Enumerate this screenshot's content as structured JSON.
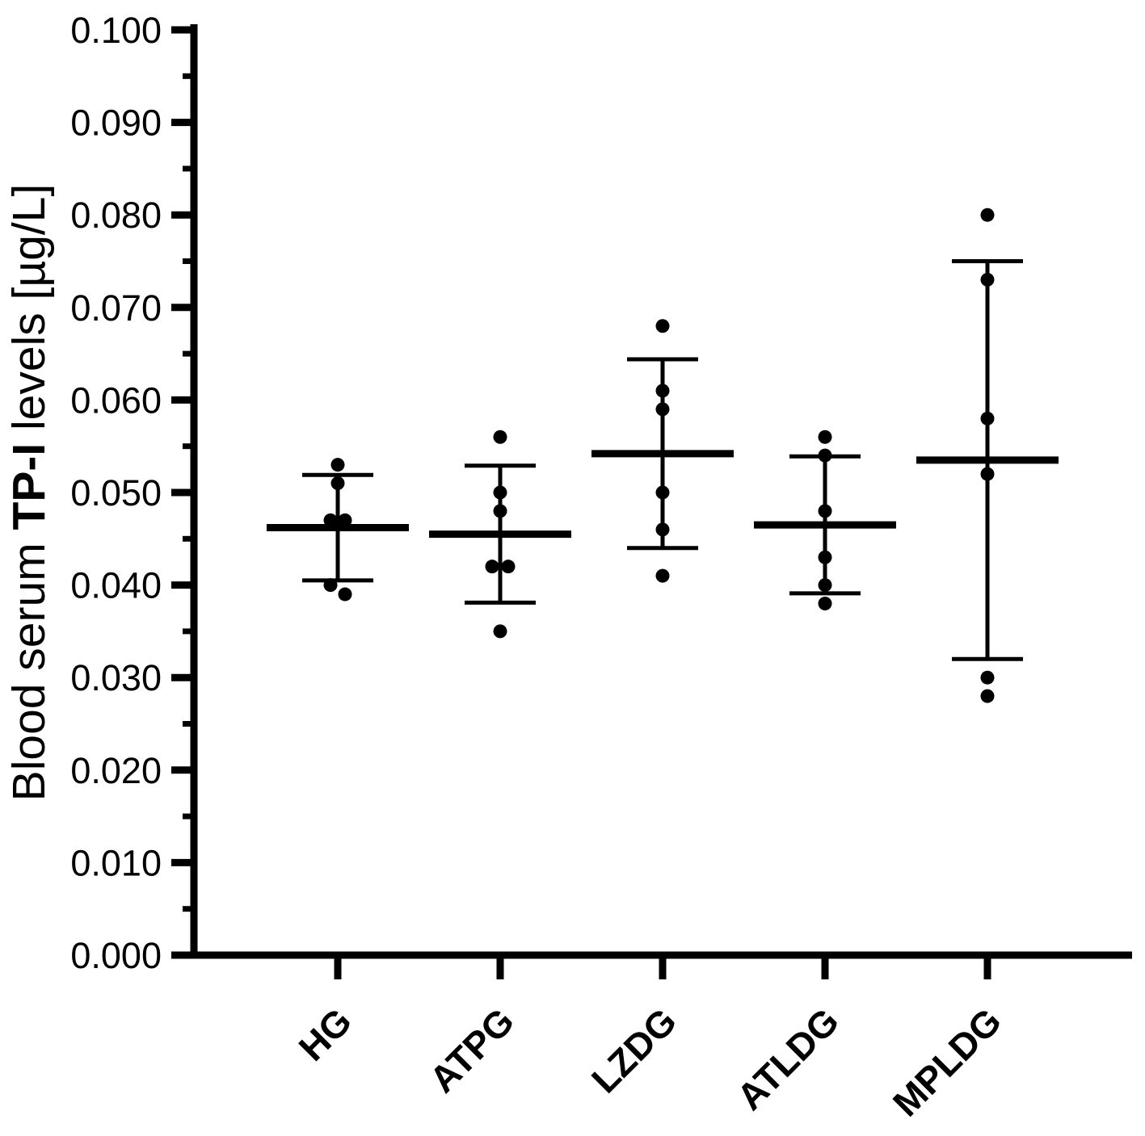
{
  "figure": {
    "background_color": "#ffffff",
    "ink_color": "#000000"
  },
  "chart_data": {
    "type": "scatter",
    "subtype": "column-scatter-with-mean-sd-error-bars",
    "title": "",
    "xlabel": "",
    "ylabel": "Blood serum TP-I levels [µg/L]",
    "ylabel_parts": {
      "prefix": "Blood serum ",
      "bold": "TP-I",
      "suffix": " levels [µg/L]"
    },
    "ylim": [
      0.0,
      0.1
    ],
    "ytick_labels": [
      "0.000",
      "0.010",
      "0.020",
      "0.030",
      "0.040",
      "0.050",
      "0.060",
      "0.070",
      "0.080",
      "0.090",
      "0.100"
    ],
    "ytick_minor_values": [
      0.005,
      0.015,
      0.025,
      0.035,
      0.045,
      0.055,
      0.065,
      0.075,
      0.085,
      0.095
    ],
    "grid": "off",
    "legend": "none",
    "error_bar_type": "mean ± SD",
    "categories": [
      "HG",
      "ATPG",
      "LZDG",
      "ATLDG",
      "MPLDG"
    ],
    "series": [
      {
        "label": "HG",
        "mean": 0.0462,
        "upper_whisker": 0.0519,
        "lower_whisker": 0.0405,
        "points": [
          {
            "y": 0.053,
            "dx": 0
          },
          {
            "y": 0.051,
            "dx": 0
          },
          {
            "y": 0.047,
            "dx": -9
          },
          {
            "y": 0.047,
            "dx": 9
          },
          {
            "y": 0.04,
            "dx": -9
          },
          {
            "y": 0.039,
            "dx": 9
          }
        ]
      },
      {
        "label": "ATPG",
        "mean": 0.0455,
        "upper_whisker": 0.0529,
        "lower_whisker": 0.0381,
        "points": [
          {
            "y": 0.056,
            "dx": 0
          },
          {
            "y": 0.05,
            "dx": 0
          },
          {
            "y": 0.048,
            "dx": 0
          },
          {
            "y": 0.042,
            "dx": -10
          },
          {
            "y": 0.042,
            "dx": 10
          },
          {
            "y": 0.035,
            "dx": 0
          }
        ]
      },
      {
        "label": "LZDG",
        "mean": 0.0542,
        "upper_whisker": 0.0644,
        "lower_whisker": 0.044,
        "points": [
          {
            "y": 0.068,
            "dx": 0
          },
          {
            "y": 0.061,
            "dx": 0
          },
          {
            "y": 0.059,
            "dx": 0
          },
          {
            "y": 0.05,
            "dx": 0
          },
          {
            "y": 0.046,
            "dx": 0
          },
          {
            "y": 0.041,
            "dx": 0
          }
        ]
      },
      {
        "label": "ATLDG",
        "mean": 0.0465,
        "upper_whisker": 0.0539,
        "lower_whisker": 0.0391,
        "points": [
          {
            "y": 0.056,
            "dx": 0
          },
          {
            "y": 0.054,
            "dx": 0
          },
          {
            "y": 0.048,
            "dx": 0
          },
          {
            "y": 0.043,
            "dx": 0
          },
          {
            "y": 0.04,
            "dx": 0
          },
          {
            "y": 0.038,
            "dx": 0
          }
        ]
      },
      {
        "label": "MPLDG",
        "mean": 0.0535,
        "upper_whisker": 0.075,
        "lower_whisker": 0.032,
        "points": [
          {
            "y": 0.08,
            "dx": 0
          },
          {
            "y": 0.073,
            "dx": 0
          },
          {
            "y": 0.058,
            "dx": 0
          },
          {
            "y": 0.052,
            "dx": 0
          },
          {
            "y": 0.03,
            "dx": 0
          },
          {
            "y": 0.028,
            "dx": 0
          }
        ]
      }
    ]
  }
}
